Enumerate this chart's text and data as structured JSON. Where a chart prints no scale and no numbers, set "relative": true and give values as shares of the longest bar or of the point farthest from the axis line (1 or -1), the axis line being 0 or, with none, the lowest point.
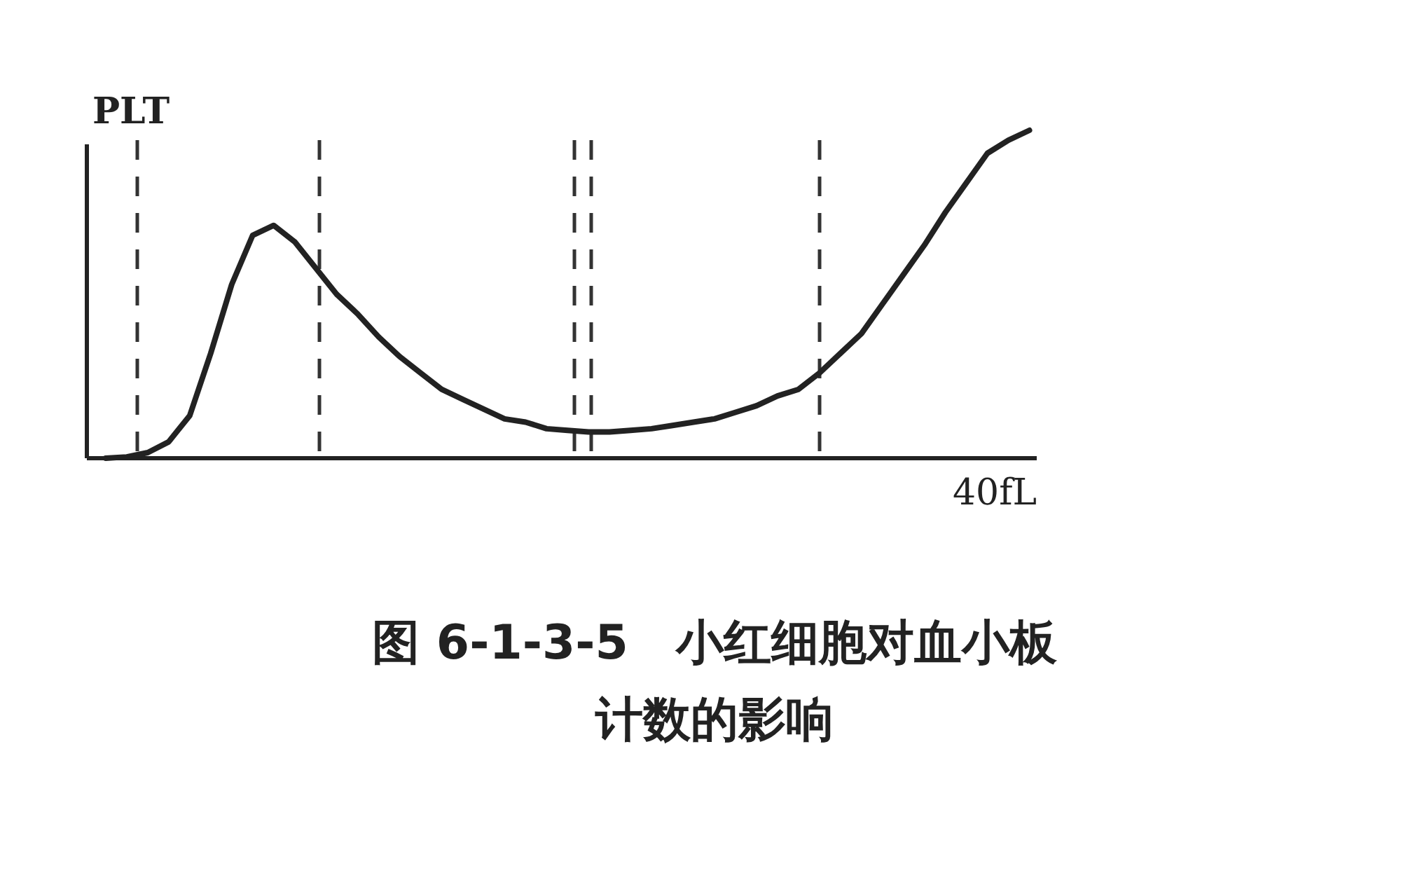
{
  "chart_data": {
    "type": "line",
    "title": "图 6-1-3-5　小红细胞对血小板计数的影响",
    "ylabel": "PLT",
    "xlabel": "40fL",
    "relative": true,
    "grid": "x",
    "color": "#222222",
    "categories": [
      null,
      null,
      null,
      null,
      null,
      null,
      null,
      null,
      null,
      null,
      null,
      null,
      null,
      null,
      null,
      null,
      null,
      null,
      null,
      null,
      null,
      null,
      null,
      null,
      null,
      null,
      null,
      null,
      null,
      null,
      null,
      null,
      null,
      null,
      null,
      null,
      null,
      null,
      null,
      null,
      null,
      null,
      null,
      null,
      null
    ],
    "values": [
      0,
      0.004,
      0.017,
      0.05,
      0.13,
      0.32,
      0.53,
      0.68,
      0.71,
      0.66,
      0.58,
      0.5,
      0.44,
      0.37,
      0.31,
      0.26,
      0.21,
      0.18,
      0.15,
      0.12,
      0.11,
      0.09,
      0.085,
      0.08,
      0.08,
      0.085,
      0.09,
      0.1,
      0.11,
      0.12,
      0.14,
      0.16,
      0.19,
      0.21,
      0.26,
      0.32,
      0.38,
      0.47,
      0.56,
      0.65,
      0.75,
      0.84,
      0.93,
      0.97,
      1
    ]
  }
}
